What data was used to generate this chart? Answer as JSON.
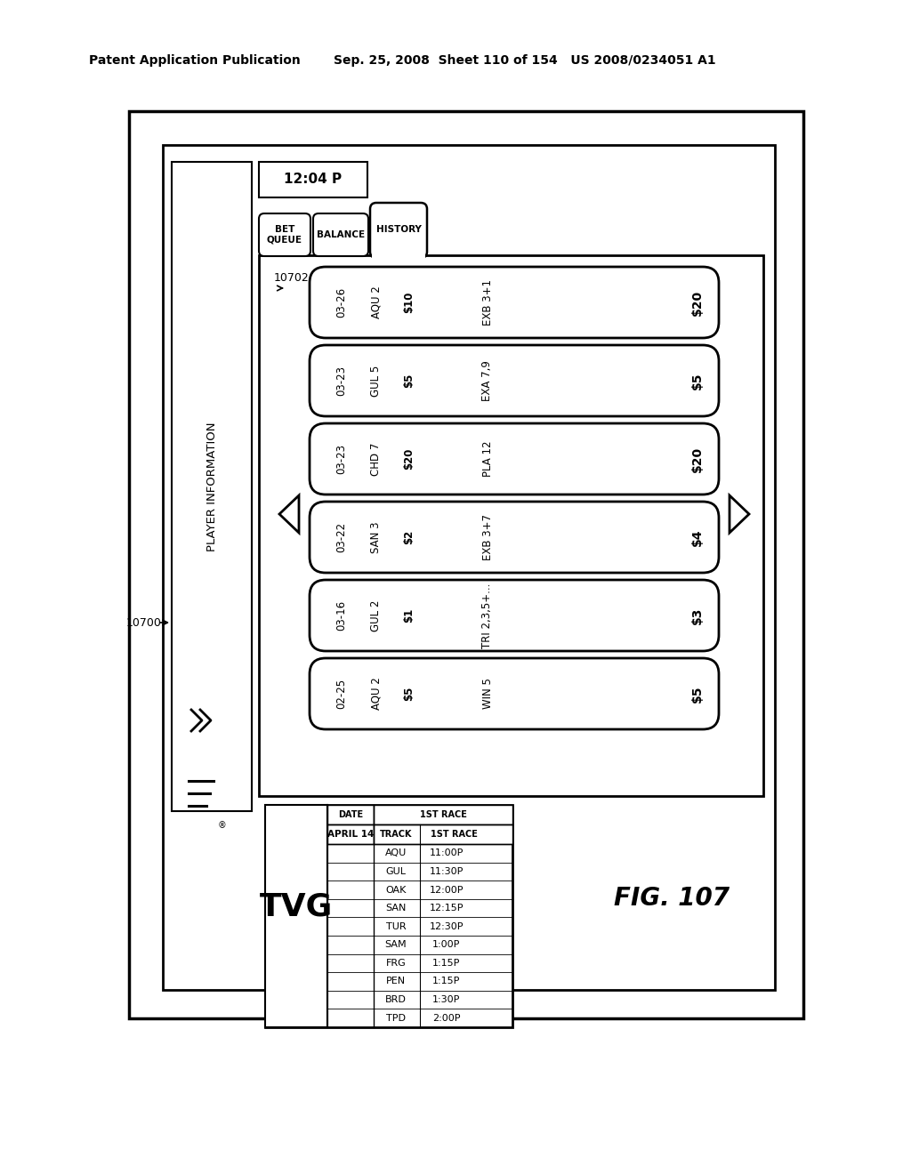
{
  "header_left": "Patent Application Publication",
  "header_right": "Sep. 25, 2008  Sheet 110 of 154   US 2008/0234051 A1",
  "fig_label": "FIG. 107",
  "id_main": "10700",
  "id_sub": "10702",
  "time_str": "12:04 P",
  "player_info": "PLAYER INFORMATION",
  "tab_names": [
    "BET\nQUEUE",
    "BALANCE",
    "HISTORY"
  ],
  "history_rows": [
    {
      "col1": "03-26",
      "col2": "AQU 2",
      "col3": "$10",
      "col4": "EXB 3+1",
      "col5": "$20"
    },
    {
      "col1": "03-23",
      "col2": "GUL 5",
      "col3": "$5",
      "col4": "EXA 7,9",
      "col5": "$5"
    },
    {
      "col1": "03-23",
      "col2": "CHD 7",
      "col3": "$20",
      "col4": "PLA 12",
      "col5": "$20"
    },
    {
      "col1": "03-22",
      "col2": "SAN 3",
      "col3": "$2",
      "col4": "EXB 3+7",
      "col5": "$4"
    },
    {
      "col1": "03-16",
      "col2": "GUL 2",
      "col3": "$1",
      "col4": "TRI 2,3,5+...",
      "col5": "$3"
    },
    {
      "col1": "02-25",
      "col2": "AQU 2",
      "col3": "$5",
      "col4": "WIN 5",
      "col5": "$5"
    }
  ],
  "tvg_date": "APRIL 14",
  "tvg_tracks": [
    "AQU",
    "GUL",
    "OAK",
    "SAN",
    "TUR",
    "SAM",
    "FRG",
    "PEN",
    "BRD",
    "TPD"
  ],
  "tvg_times": [
    "11:00P",
    "11:30P",
    "12:00P",
    "12:15P",
    "12:30P",
    "1:00P",
    "1:15P",
    "1:15P",
    "1:30P",
    "2:00P"
  ]
}
